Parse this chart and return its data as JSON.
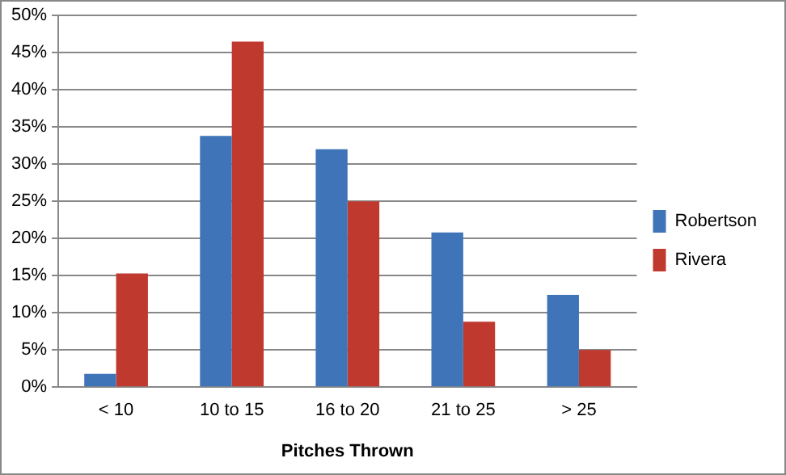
{
  "chart_data": {
    "type": "bar",
    "xlabel": "Pitches Thrown",
    "categories": [
      "< 10",
      "10 to 15",
      "16 to 20",
      "21 to 25",
      "> 25"
    ],
    "series": [
      {
        "name": "Robertson",
        "color": "#3f74b8",
        "values": [
          1.8,
          33.8,
          32,
          20.8,
          12.4
        ]
      },
      {
        "name": "Rivera",
        "color": "#c0392f",
        "values": [
          15.3,
          46.5,
          25,
          8.8,
          5
        ]
      }
    ],
    "ylim": [
      0,
      50
    ],
    "yticks": [
      {
        "value": 0,
        "label": "0%"
      },
      {
        "value": 5,
        "label": "5%"
      },
      {
        "value": 10,
        "label": "10%"
      },
      {
        "value": 15,
        "label": "15%"
      },
      {
        "value": 20,
        "label": "20%"
      },
      {
        "value": 25,
        "label": "25%"
      },
      {
        "value": 30,
        "label": "30%"
      },
      {
        "value": 35,
        "label": "35%"
      },
      {
        "value": 40,
        "label": "40%"
      },
      {
        "value": 45,
        "label": "45%"
      },
      {
        "value": 50,
        "label": "50%"
      }
    ],
    "grid": "y",
    "legend": "right"
  }
}
